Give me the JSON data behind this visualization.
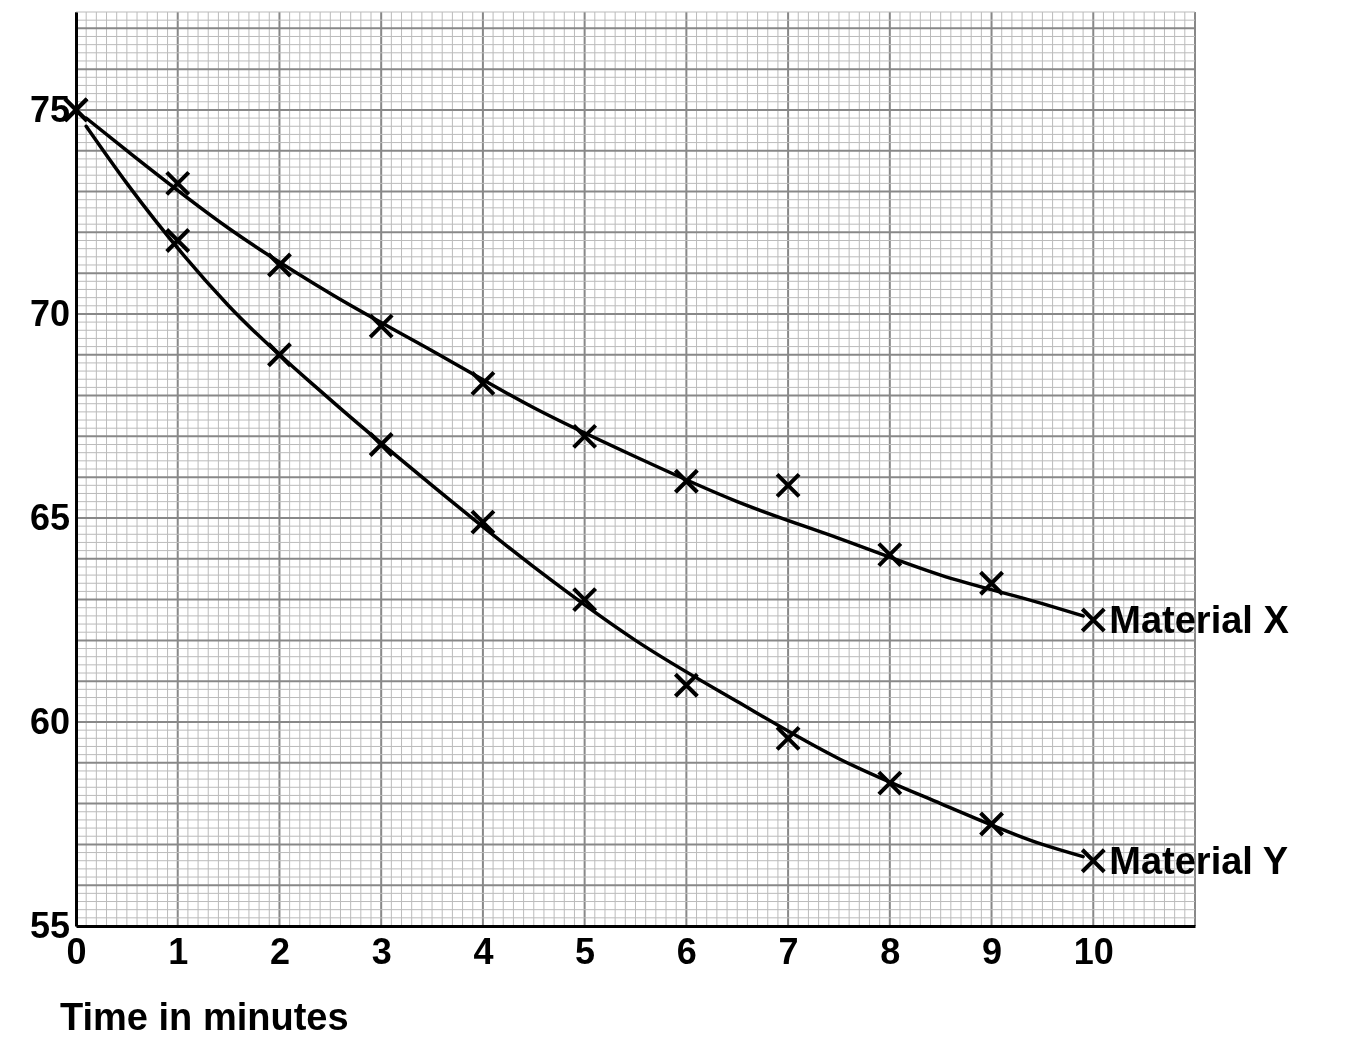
{
  "chart_data": {
    "type": "scatter",
    "xlabel": "Time in minutes",
    "xlim": [
      0,
      11
    ],
    "ylim": [
      55,
      77.4
    ],
    "xticks": [
      0,
      1,
      2,
      3,
      4,
      5,
      6,
      7,
      8,
      9,
      10
    ],
    "yticks": [
      55,
      60,
      65,
      70,
      75
    ],
    "grid": true,
    "legend": false,
    "x": [
      0,
      1,
      2,
      3,
      4,
      5,
      6,
      7,
      8,
      9,
      10
    ],
    "series": [
      {
        "name": "Material X",
        "color": "#000000",
        "marker": "cross",
        "values": [
          75,
          73.2,
          71.2,
          69.7,
          68.3,
          67.0,
          65.9,
          65.8,
          64.1,
          63.4,
          62.5
        ]
      },
      {
        "name": "Material Y",
        "color": "#000000",
        "marker": "cross",
        "values": [
          75,
          71.8,
          69.0,
          66.8,
          64.9,
          63.0,
          60.9,
          59.6,
          58.5,
          57.5,
          56.6
        ]
      },
      {
        "type": "line",
        "color": "#000000",
        "marker": "none",
        "line_style": "solid",
        "x": [
          0.1,
          0.5,
          1.5,
          2.5,
          3.5,
          4.5,
          5.5,
          6.5,
          7.5,
          8.5,
          9.5,
          9.9
        ],
        "values": [
          74.8,
          74.0,
          72.1,
          70.5,
          69.1,
          67.7,
          66.5,
          65.4,
          64.5,
          63.6,
          62.9,
          62.6
        ]
      },
      {
        "type": "line",
        "color": "#000000",
        "marker": "none",
        "line_style": "solid",
        "x": [
          0.1,
          0.5,
          1.5,
          2.5,
          3.5,
          4.5,
          5.5,
          6.5,
          7.5,
          8.5,
          9.5,
          9.9
        ],
        "values": [
          74.6,
          73.2,
          70.2,
          67.9,
          65.8,
          63.8,
          62.0,
          60.5,
          59.1,
          58.0,
          57.0,
          56.7
        ]
      }
    ]
  }
}
